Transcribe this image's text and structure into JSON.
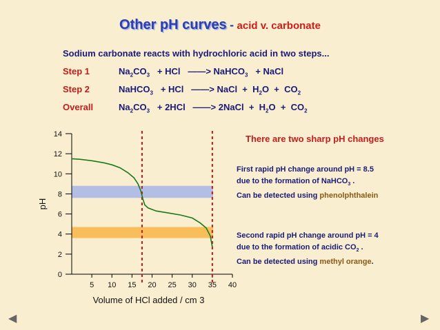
{
  "title": {
    "main": "Other pH curves",
    "sep": "-",
    "sub": "acid v. carbonate"
  },
  "intro": "Sodium carbonate reacts with hydrochloric acid in two steps...",
  "equations": [
    {
      "label": "Step 1",
      "reactants": [
        [
          "Na",
          "2"
        ],
        [
          "CO",
          "3"
        ]
      ],
      "reactant_rest": "+ HCl",
      "arrow": "——>",
      "products_a": [
        [
          "NaHCO",
          "3"
        ]
      ],
      "products_rest": "+ NaCl"
    },
    {
      "label": "Step 2",
      "reactants": [
        [
          "NaHCO",
          "3"
        ]
      ],
      "reactant_rest": "+ HCl",
      "arrow": "——>",
      "products_a": [
        [
          "NaCl",
          ""
        ]
      ],
      "products_rest": "+ H2O + CO2"
    },
    {
      "label": "Overall",
      "reactants": [
        [
          "Na",
          "2"
        ],
        [
          "CO",
          "3"
        ]
      ],
      "reactant_rest": "+ 2HCl",
      "arrow": "——>",
      "products_a": [
        [
          "2NaCl",
          ""
        ]
      ],
      "products_rest": "+ H2O + CO2"
    }
  ],
  "notes": {
    "heading": "There are two sharp pH changes",
    "first_line1": "First rapid pH change around pH = 8.5",
    "first_line2_pre": "due to the formation of NaHCO",
    "first_line2_sub": "3",
    "first_line2_post": ".",
    "first_detect_pre": "Can be detected using",
    "first_indicator": "phenolphthalein",
    "second_line1": "Second rapid pH change around pH = 4",
    "second_line2_pre": "due to the formation of acidic CO",
    "second_line2_sub": "2",
    "second_line2_post": ".",
    "second_detect_pre": "Can be detected using",
    "second_indicator": "methyl orange",
    "second_detect_post": "."
  },
  "chart_data": {
    "type": "line",
    "xlabel": "Volume of HCl added / cm 3",
    "ylabel": "pH",
    "x_ticks": [
      5,
      10,
      15,
      20,
      25,
      30,
      35,
      40
    ],
    "y_ticks": [
      0,
      2,
      4,
      6,
      8,
      10,
      12,
      14
    ],
    "xlim": [
      0,
      40
    ],
    "ylim": [
      0,
      14
    ],
    "series": [
      {
        "color": "#1a7a1a",
        "x": [
          0,
          2,
          5,
          8,
          10,
          12,
          14,
          15.5,
          16.5,
          17.2,
          17.7,
          18.2,
          19,
          21,
          24,
          27,
          30,
          32,
          33.5,
          34.5,
          35.0
        ],
        "y": [
          11.5,
          11.45,
          11.3,
          11.1,
          10.9,
          10.6,
          10.1,
          9.6,
          9.0,
          8.3,
          7.5,
          6.9,
          6.6,
          6.3,
          6.1,
          5.9,
          5.6,
          5.1,
          4.6,
          3.8,
          2.7
        ]
      }
    ],
    "equivalence_lines_x": [
      17.5,
      35
    ],
    "bands": [
      {
        "y_from": 7.6,
        "y_to": 8.8,
        "color": "#aab8e6"
      },
      {
        "y_from": 3.6,
        "y_to": 4.7,
        "color": "#f7b84d"
      }
    ]
  },
  "nav": {
    "left": "◀",
    "right": "▶"
  }
}
